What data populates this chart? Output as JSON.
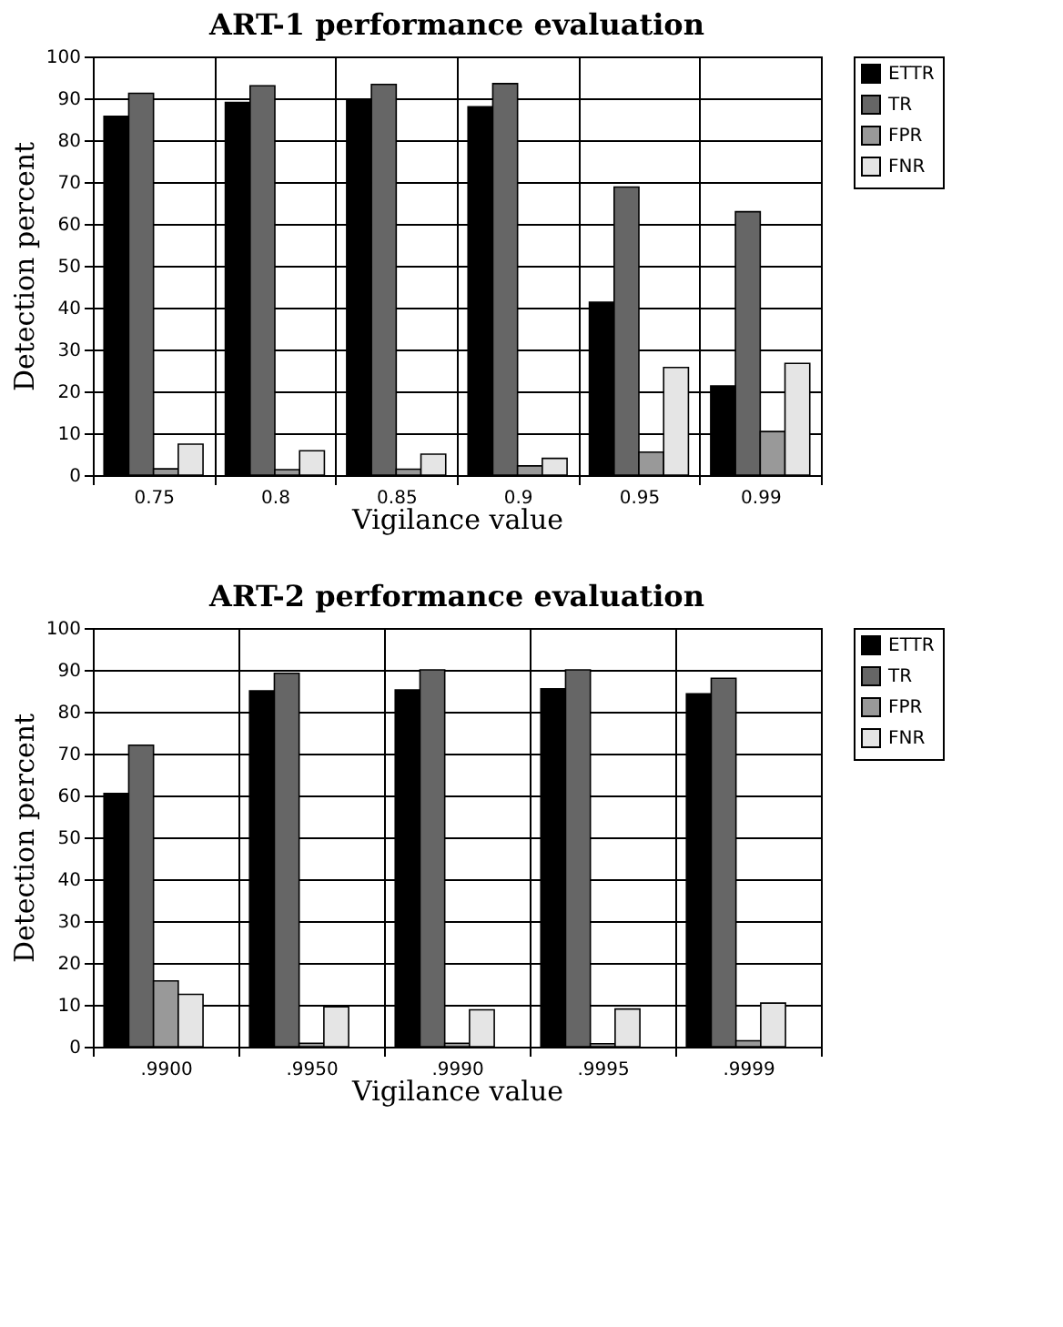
{
  "chart_data": [
    {
      "type": "bar",
      "title": "ART-1 performance evaluation",
      "xlabel": "Vigilance value",
      "ylabel": "Detection percent",
      "categories": [
        "0.75",
        "0.8",
        "0.85",
        "0.9",
        "0.95",
        "0.99"
      ],
      "series": [
        {
          "name": "ETTR",
          "color": "#000000",
          "values": [
            85.7,
            89,
            89.5,
            88,
            41.3,
            21.3
          ]
        },
        {
          "name": "TR",
          "color": "#666666",
          "values": [
            91.2,
            93,
            93.3,
            93.5,
            68.8,
            62.9
          ]
        },
        {
          "name": "FPR",
          "color": "#999999",
          "values": [
            1.5,
            1.3,
            1.4,
            2.2,
            5.5,
            10.4
          ]
        },
        {
          "name": "FNR",
          "color": "#e5e5e5",
          "values": [
            7.4,
            5.8,
            5.0,
            4.0,
            25.7,
            26.7
          ]
        }
      ],
      "ylim": [
        0,
        100
      ],
      "yticks": [
        0,
        10,
        20,
        30,
        40,
        50,
        60,
        70,
        80,
        90,
        100
      ],
      "grid": true,
      "legend": "right"
    },
    {
      "type": "bar",
      "title": "ART-2 performance evaluation",
      "xlabel": "Vigilance value",
      "ylabel": "Detection percent",
      "categories": [
        ".9900",
        ".9950",
        ".9990",
        ".9995",
        ".9999"
      ],
      "series": [
        {
          "name": "ETTR",
          "color": "#000000",
          "values": [
            60.5,
            85,
            85.2,
            85.5,
            84.3
          ]
        },
        {
          "name": "TR",
          "color": "#666666",
          "values": [
            72,
            89.2,
            90,
            90,
            88
          ]
        },
        {
          "name": "FPR",
          "color": "#999999",
          "values": [
            15.7,
            0.8,
            0.8,
            0.7,
            1.4
          ]
        },
        {
          "name": "FNR",
          "color": "#e5e5e5",
          "values": [
            12.5,
            9.5,
            8.8,
            9.0,
            10.4
          ]
        }
      ],
      "ylim": [
        0,
        100
      ],
      "yticks": [
        0,
        10,
        20,
        30,
        40,
        50,
        60,
        70,
        80,
        90,
        100
      ],
      "grid": true,
      "legend": "right"
    }
  ]
}
